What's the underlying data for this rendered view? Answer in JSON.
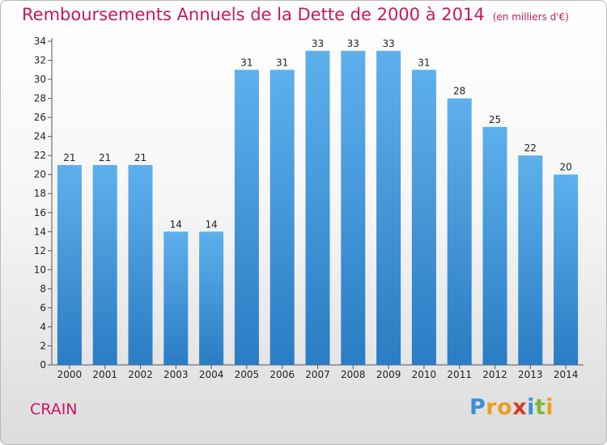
{
  "chart_data": {
    "type": "bar",
    "title": "Remboursements Annuels de la Dette de 2000 à 2014",
    "unit": "(en milliers d'€)",
    "categories": [
      "2000",
      "2001",
      "2002",
      "2003",
      "2004",
      "2005",
      "2006",
      "2007",
      "2008",
      "2009",
      "2010",
      "2011",
      "2012",
      "2013",
      "2014"
    ],
    "values": [
      21,
      21,
      21,
      14,
      14,
      31,
      31,
      33,
      33,
      33,
      31,
      28,
      25,
      22,
      20
    ],
    "ylim": [
      0,
      34
    ],
    "yticks": [
      0,
      2,
      4,
      6,
      8,
      10,
      12,
      14,
      16,
      18,
      20,
      22,
      24,
      26,
      28,
      30,
      32,
      34
    ],
    "grid": false,
    "bar_color": "#4a9fe0"
  },
  "commune": "CRAIN",
  "logo": {
    "letters": [
      "P",
      "r",
      "o",
      "x",
      "i",
      "t",
      "i"
    ],
    "colors": [
      "#3b8fd6",
      "#e8a020",
      "#e8a020",
      "#d43a2a",
      "#3b8fd6",
      "#7cb83a",
      "#e8a020"
    ]
  }
}
